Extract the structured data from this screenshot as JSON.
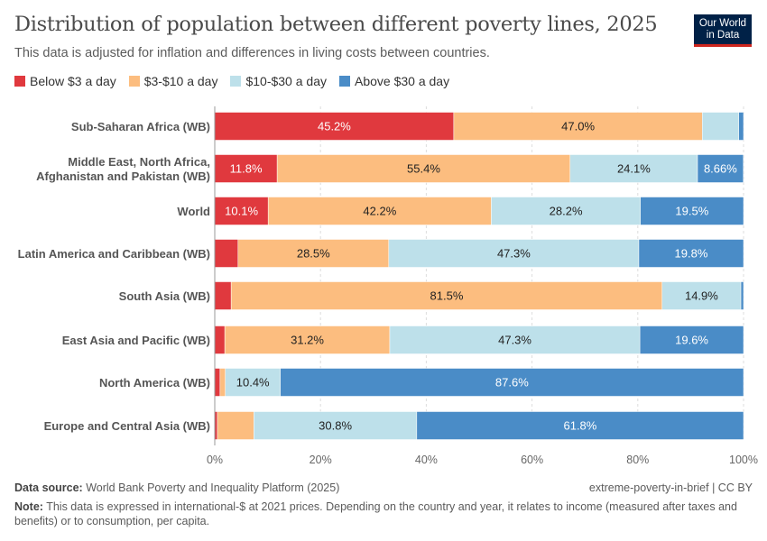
{
  "title": "Distribution of population between different poverty lines, 2025",
  "subtitle": "This data is adjusted for inflation and differences in living costs between countries.",
  "logo": "Our World in Data",
  "footer": {
    "source_label": "Data source:",
    "source": "World Bank Poverty and Inequality Platform (2025)",
    "license": "extreme-poverty-in-brief | CC BY",
    "note_label": "Note:",
    "note": "This data is expressed in international-$ at 2021 prices. Depending on the country and year, it relates to income (measured after taxes and benefits) or to consumption, per capita."
  },
  "chart_data": {
    "type": "bar",
    "orientation": "horizontal",
    "stacked": true,
    "title": "Distribution of population between different poverty lines, 2025",
    "xlim": [
      0,
      100
    ],
    "x_ticks": [
      "0%",
      "20%",
      "40%",
      "60%",
      "80%",
      "100%"
    ],
    "legend_position": "top",
    "categories": [
      "Sub-Saharan Africa (WB)",
      "Middle East, North Africa, Afghanistan and Pakistan (WB)",
      "World",
      "Latin America and Caribbean (WB)",
      "South Asia (WB)",
      "East Asia and Pacific (WB)",
      "North America (WB)",
      "Europe and Central Asia (WB)"
    ],
    "series": [
      {
        "name": "Below $3 a day",
        "color": "#e0393e",
        "values": [
          45.2,
          11.8,
          10.1,
          4.4,
          3.1,
          1.9,
          1.0,
          0.5
        ]
      },
      {
        "name": "$3-$10 a day",
        "color": "#fcbd7f",
        "values": [
          47.0,
          55.4,
          42.2,
          28.5,
          81.5,
          31.2,
          1.0,
          6.9
        ]
      },
      {
        "name": "$10-$30 a day",
        "color": "#bde0ea",
        "values": [
          6.9,
          24.1,
          28.2,
          47.3,
          14.9,
          47.3,
          10.4,
          30.8
        ]
      },
      {
        "name": "Above $30 a day",
        "color": "#4a8cc7",
        "values": [
          0.9,
          8.66,
          19.5,
          19.8,
          0.5,
          19.6,
          87.6,
          61.8
        ]
      }
    ]
  }
}
